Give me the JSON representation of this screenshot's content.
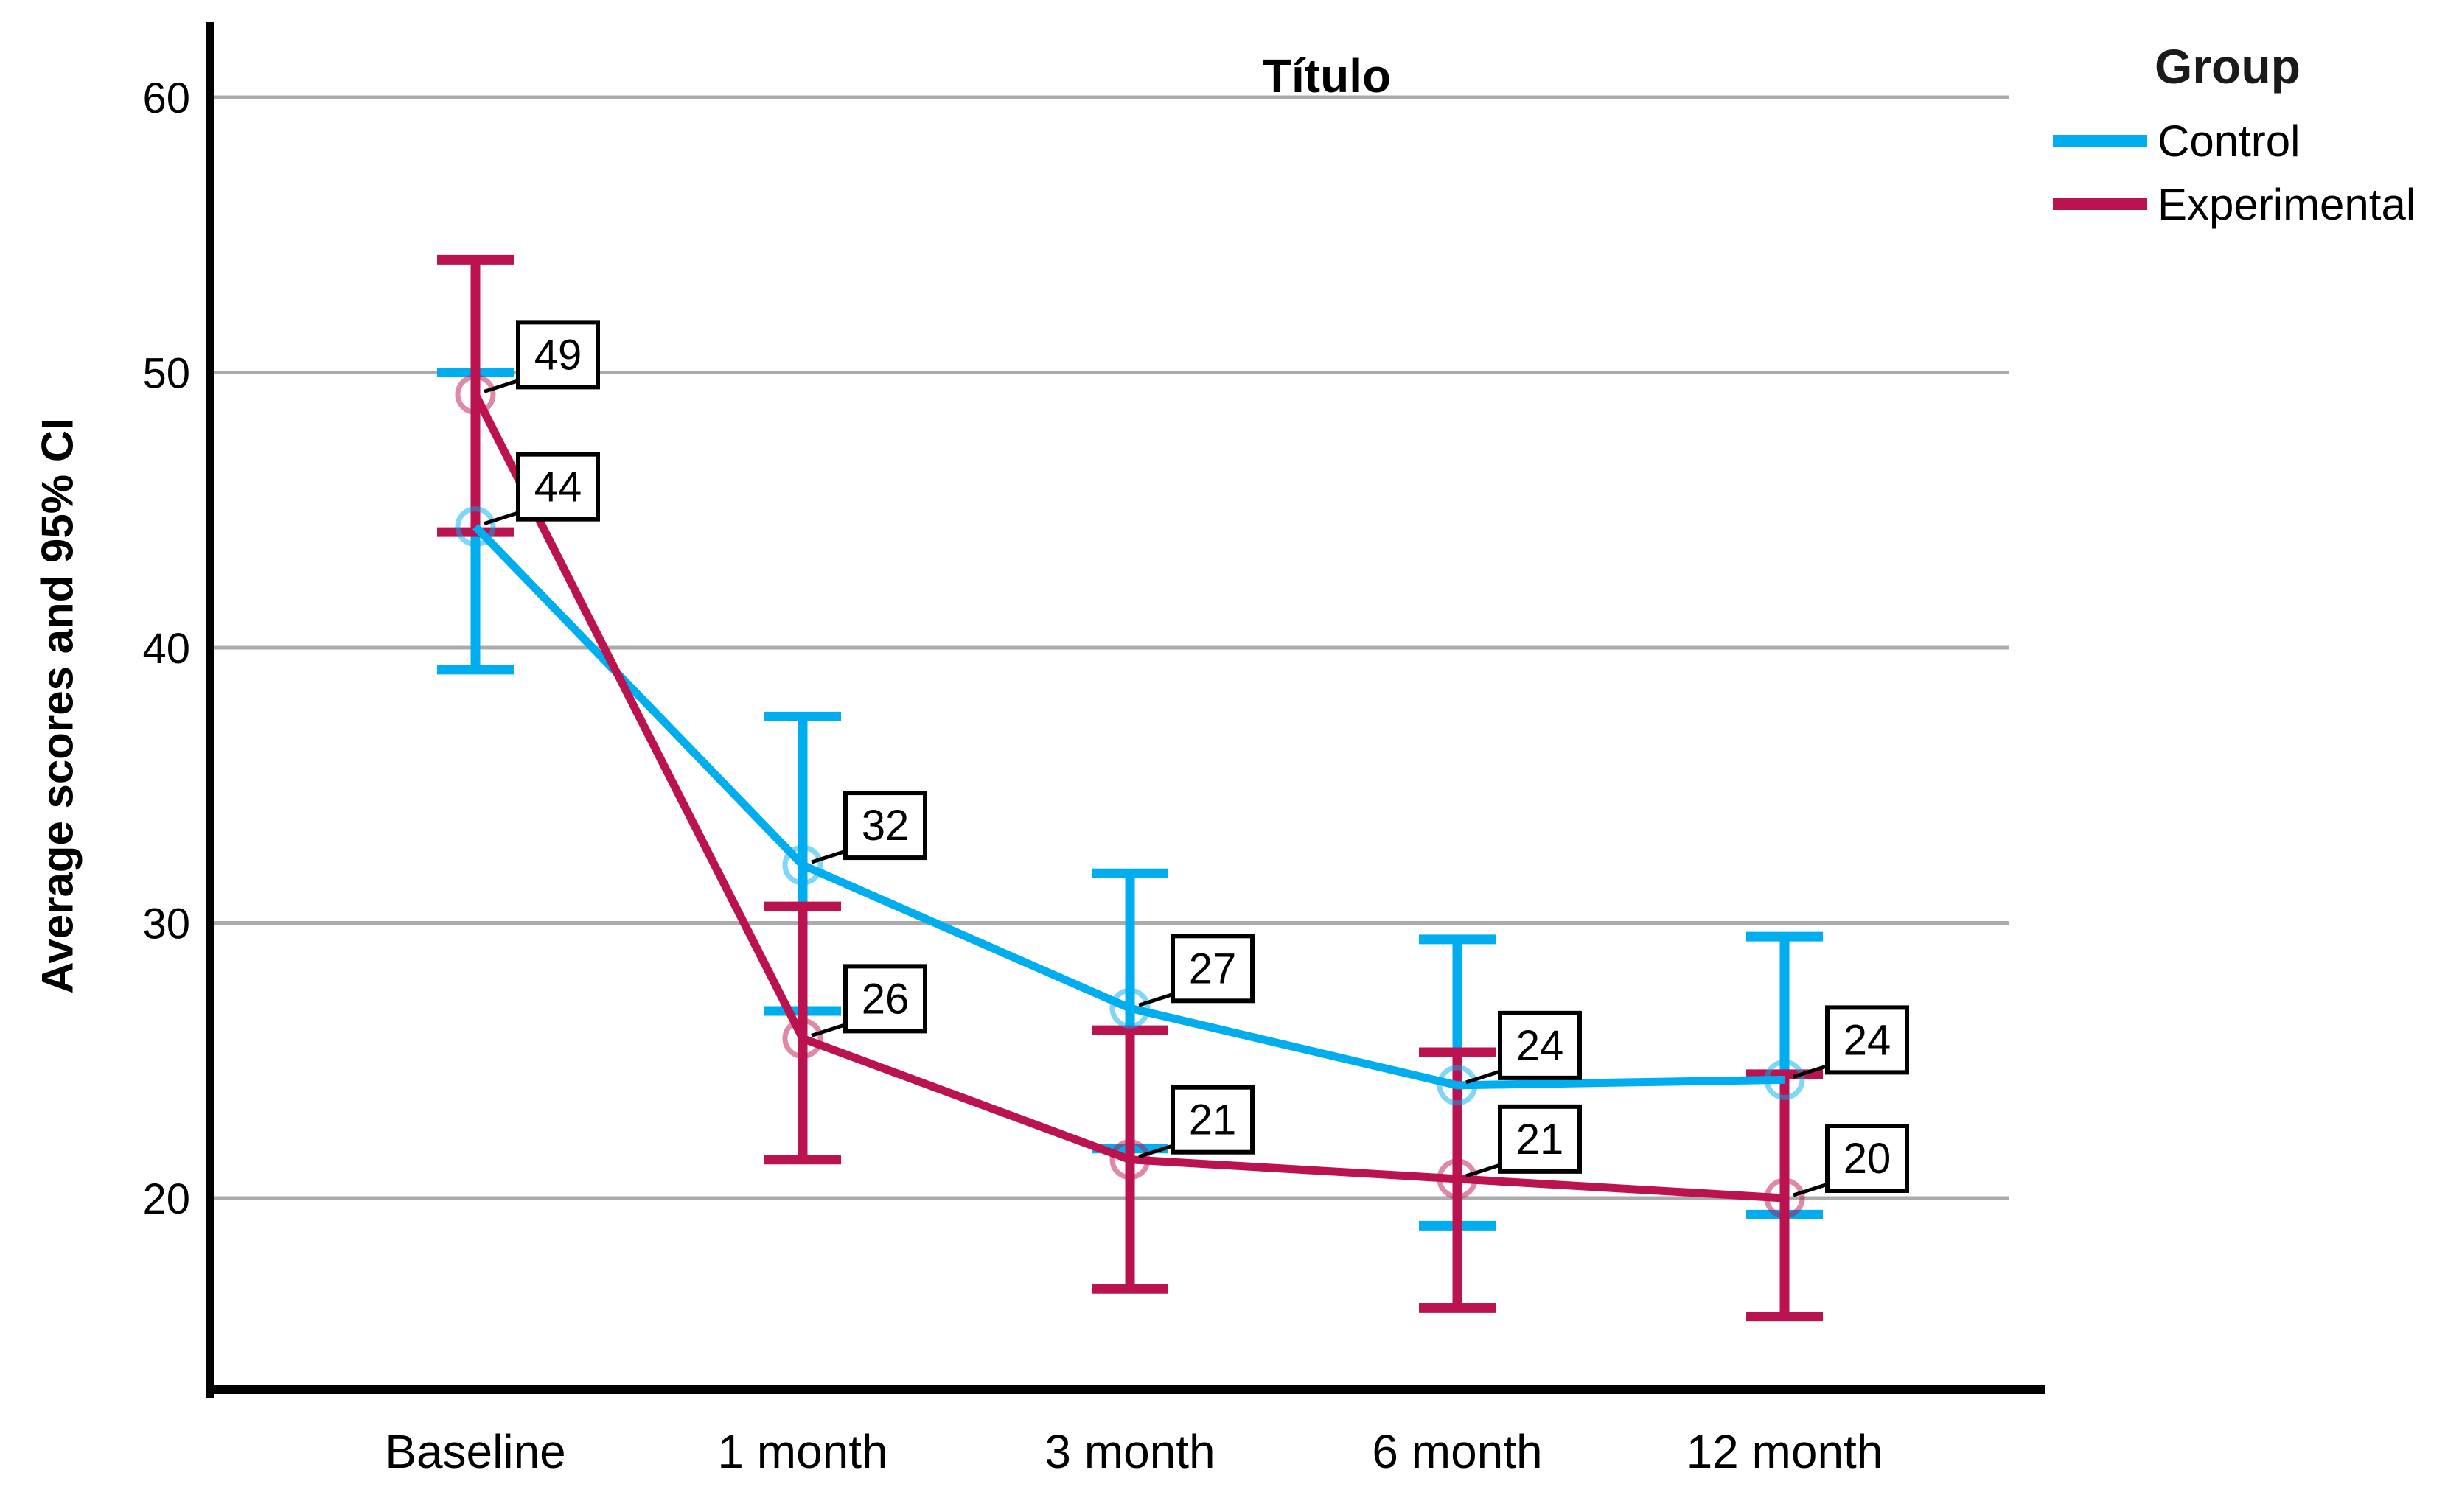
{
  "title": "Título",
  "y_axis": {
    "label": "Average scores and 95% CI",
    "ticks": [
      60,
      50,
      40,
      30,
      20
    ],
    "tick_labels": [
      "60",
      "50",
      "40",
      "30",
      "20"
    ]
  },
  "x_axis": {
    "categories": [
      "Baseline",
      "1 month",
      "3 month",
      "6 month",
      "12 month"
    ]
  },
  "legend": {
    "title": "Group",
    "items": [
      {
        "label": "Control",
        "color": "#00AEEF"
      },
      {
        "label": "Experimental",
        "color": "#BB1350"
      }
    ]
  },
  "colors": {
    "control": "#00AEEF",
    "experimental": "#BB1350",
    "gridline": "#ABABAB",
    "axis": "#000000",
    "label_box_border": "#000000",
    "label_box_fill": "#FFFFFF"
  },
  "chart_data": {
    "type": "line",
    "title": "Título",
    "ylabel": "Average scores and 95% CI",
    "xlabel": "",
    "categories": [
      "Baseline",
      "1 month",
      "3 month",
      "6 month",
      "12 month"
    ],
    "ylim": [
      13,
      63
    ],
    "yticks": [
      20,
      30,
      40,
      50,
      60
    ],
    "grid": true,
    "legend_position": "top-right",
    "error_bars": "95% CI",
    "series": [
      {
        "name": "Control",
        "color": "#00AEEF",
        "values": [
          44,
          32,
          27,
          24,
          24
        ],
        "labels": [
          "44",
          "32",
          "27",
          "24",
          "24"
        ],
        "means_plotted": [
          44.4,
          32.1,
          26.9,
          24.1,
          24.3
        ],
        "ci_low": [
          39.2,
          26.8,
          21.8,
          19.0,
          19.4
        ],
        "ci_high": [
          50.0,
          37.5,
          31.8,
          29.4,
          29.5
        ]
      },
      {
        "name": "Experimental",
        "color": "#BB1350",
        "values": [
          49,
          26,
          21,
          21,
          20
        ],
        "labels": [
          "49",
          "26",
          "21",
          "21",
          "20"
        ],
        "means_plotted": [
          49.2,
          25.8,
          21.4,
          20.7,
          20.0
        ],
        "ci_low": [
          44.2,
          21.4,
          16.7,
          16.0,
          15.7
        ],
        "ci_high": [
          54.1,
          30.6,
          26.1,
          25.3,
          24.5
        ]
      }
    ]
  }
}
